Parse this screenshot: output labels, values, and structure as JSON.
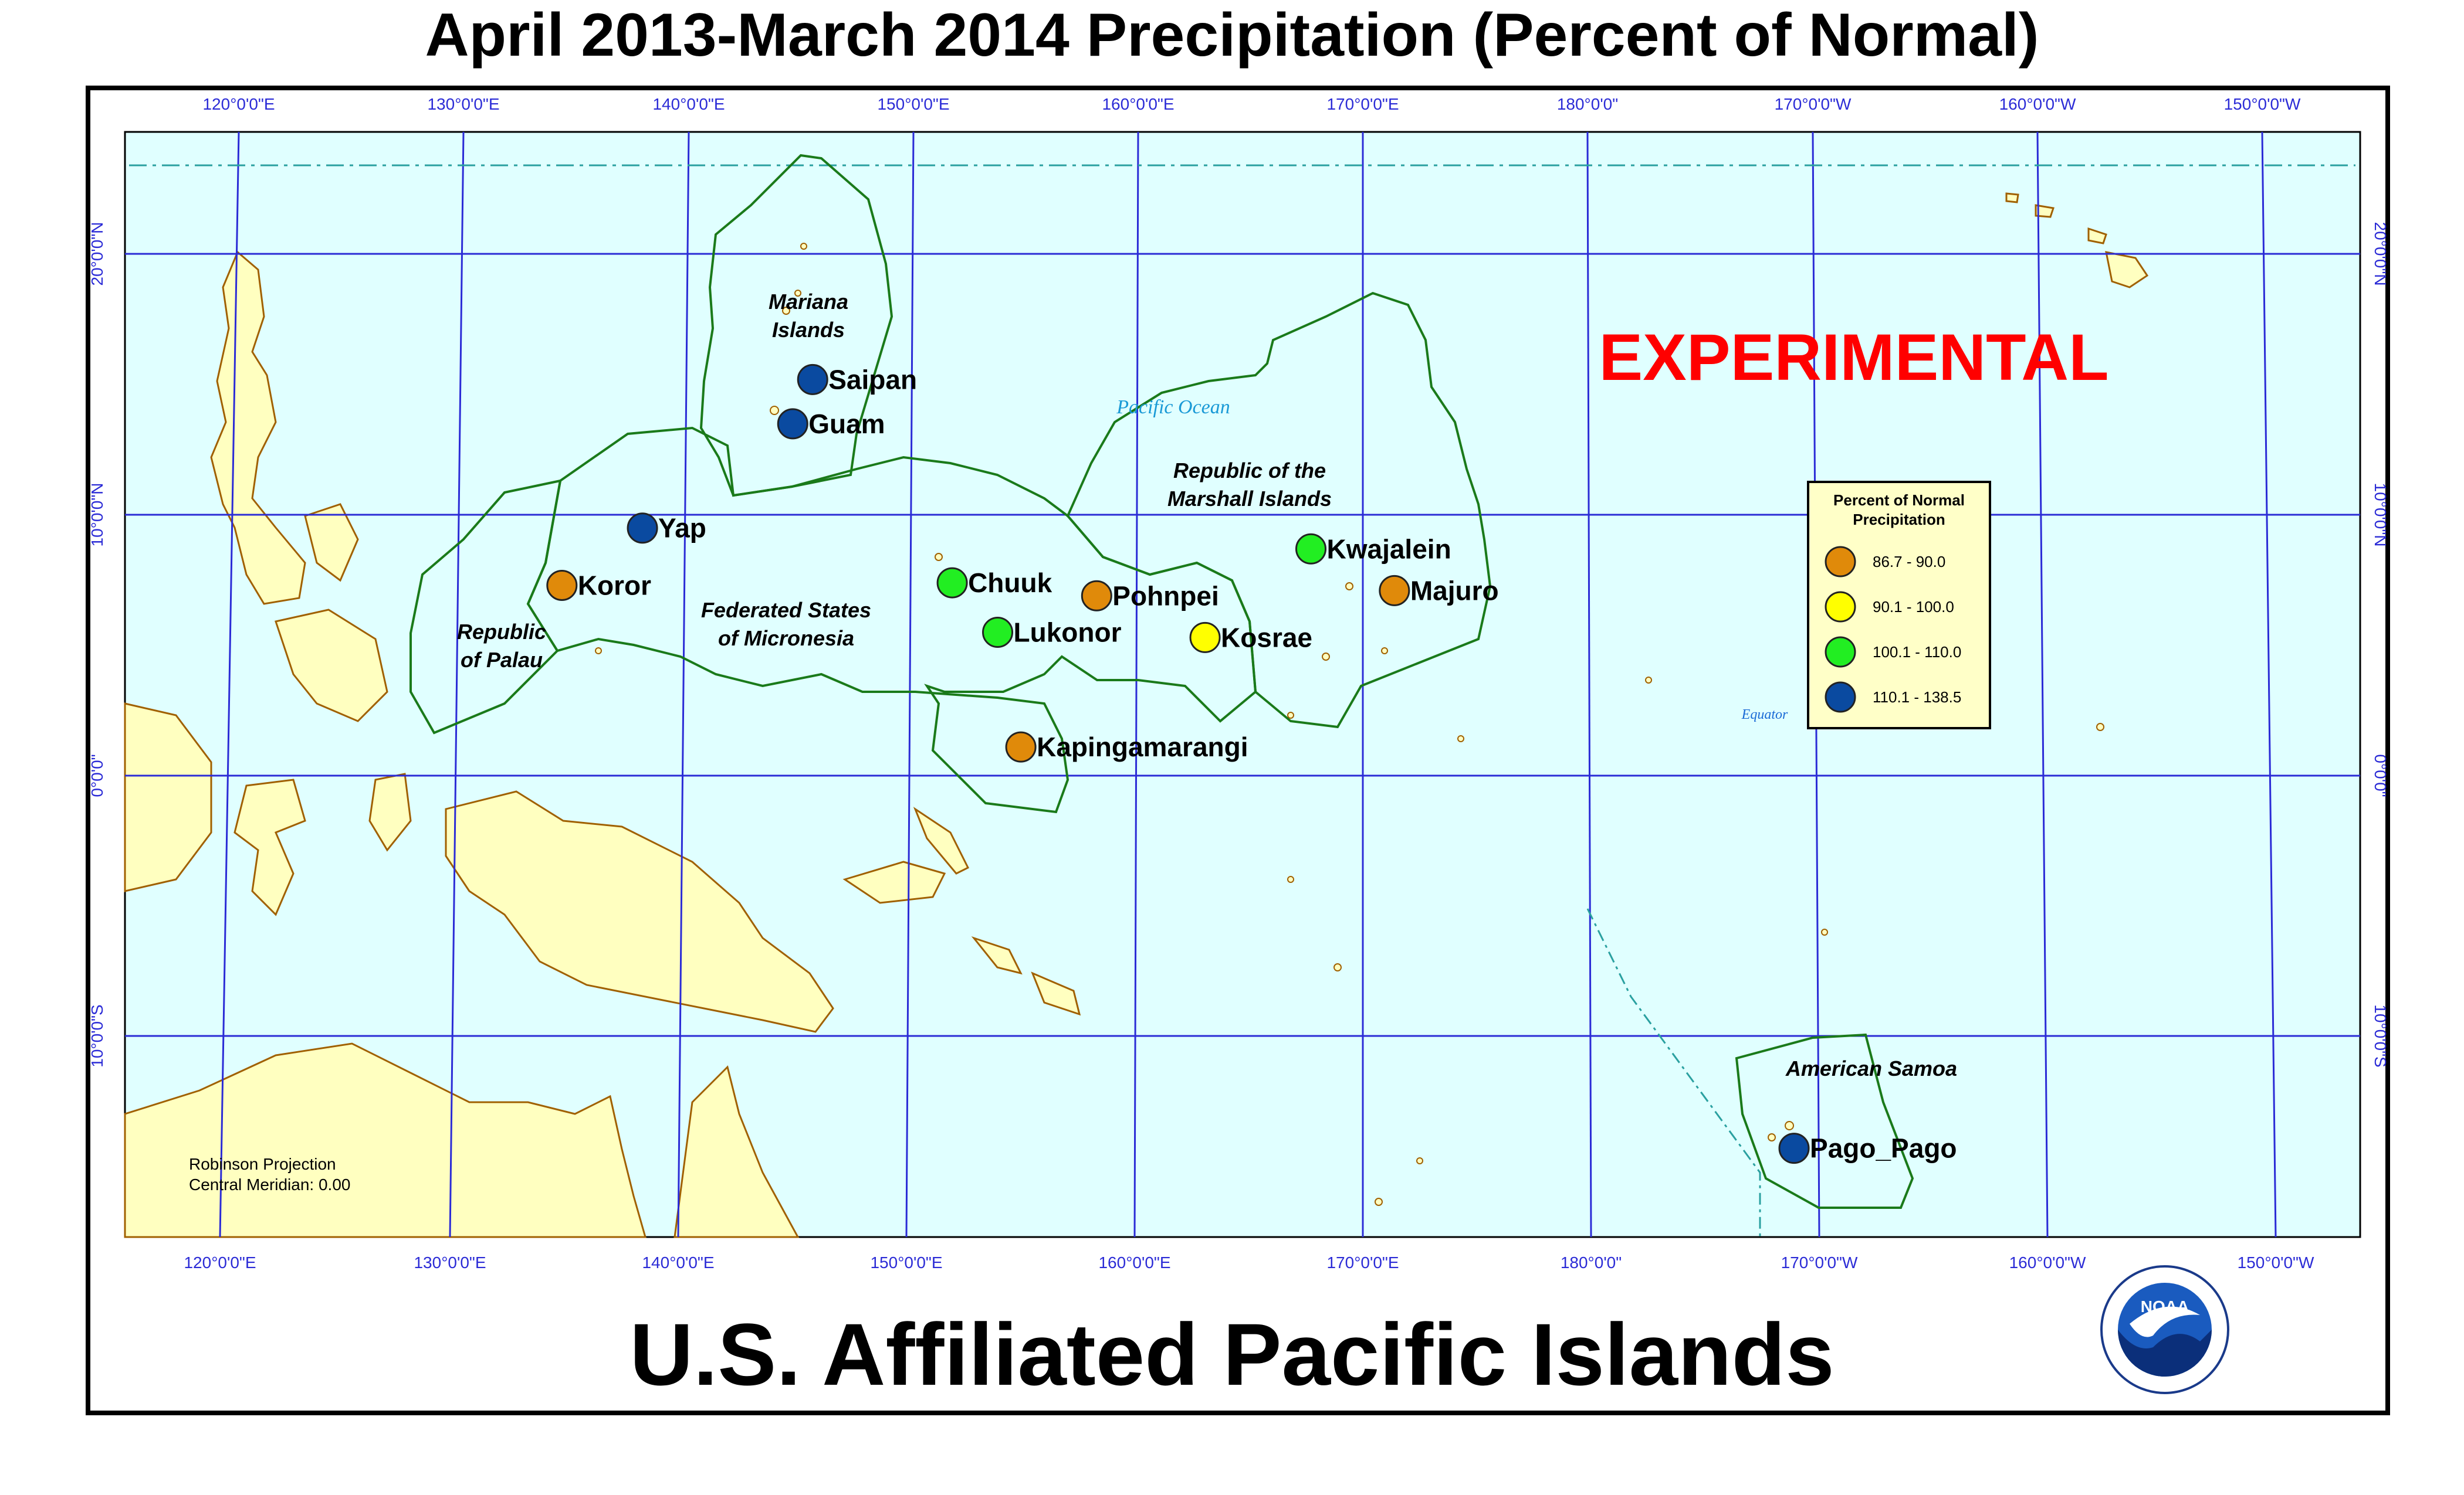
{
  "title": "April 2013-March 2014 Precipitation (Percent of Normal)",
  "footer_title": "U.S. Affiliated Pacific Islands",
  "experimental_label": "EXPERIMENTAL",
  "ocean_label": "Pacific Ocean",
  "equator_label": "Equator",
  "projection": {
    "line1": "Robinson Projection",
    "line2": "Central Meridian: 0.00"
  },
  "logo_text": "NOAA",
  "colors": {
    "ocean": "#e0ffff",
    "land": "#ffffc0",
    "graticule": "#2b2bd6",
    "region_border": "#1a7a1a",
    "experimental": "#ff0000"
  },
  "lon_labels": [
    "120°0'0\"E",
    "130°0'0\"E",
    "140°0'0\"E",
    "150°0'0\"E",
    "160°0'0\"E",
    "170°0'0\"E",
    "180°0'0\"",
    "170°0'0\"W",
    "160°0'0\"W",
    "150°0'0\"W"
  ],
  "lat_labels": [
    "20°0'0\"N",
    "10°0'0\"N",
    "0°0'0\"",
    "10°0'0\"S"
  ],
  "regions": [
    {
      "name_line1": "Mariana",
      "name_line2": "Islands"
    },
    {
      "name_line1": "Federated States",
      "name_line2": "of Micronesia"
    },
    {
      "name_line1": "Republic",
      "name_line2": "of Palau"
    },
    {
      "name_line1": "Republic of the",
      "name_line2": "Marshall Islands"
    },
    {
      "name_line1": "American Samoa",
      "name_line2": ""
    }
  ],
  "legend": {
    "title_line1": "Percent of Normal",
    "title_line2": "Precipitation",
    "classes": [
      {
        "label": "86.7 - 90.0",
        "color": "#e08a0a"
      },
      {
        "label": "90.1 - 100.0",
        "color": "#ffff00"
      },
      {
        "label": "100.1 - 110.0",
        "color": "#22ee22"
      },
      {
        "label": "110.1 - 138.5",
        "color": "#0a4aa0"
      }
    ]
  },
  "stations": [
    {
      "name": "Saipan",
      "lat": 15.2,
      "lon": 145.7,
      "class": 3
    },
    {
      "name": "Guam",
      "lat": 13.5,
      "lon": 144.8,
      "class": 3
    },
    {
      "name": "Yap",
      "lat": 9.5,
      "lon": 138.1,
      "class": 3
    },
    {
      "name": "Koror",
      "lat": 7.3,
      "lon": 134.5,
      "class": 0
    },
    {
      "name": "Chuuk",
      "lat": 7.4,
      "lon": 151.8,
      "class": 2
    },
    {
      "name": "Lukonor",
      "lat": 5.5,
      "lon": 153.8,
      "class": 2
    },
    {
      "name": "Pohnpei",
      "lat": 6.9,
      "lon": 158.2,
      "class": 0
    },
    {
      "name": "Kosrae",
      "lat": 5.3,
      "lon": 163.0,
      "class": 1
    },
    {
      "name": "Kwajalein",
      "lat": 8.7,
      "lon": 167.7,
      "class": 2
    },
    {
      "name": "Majuro",
      "lat": 7.1,
      "lon": 171.4,
      "class": 0
    },
    {
      "name": "Kapingamarangi",
      "lat": 1.1,
      "lon": 154.8,
      "class": 0
    },
    {
      "name": "Pago_Pago",
      "lat": -14.3,
      "lon": -170.7,
      "class": 3
    }
  ]
}
